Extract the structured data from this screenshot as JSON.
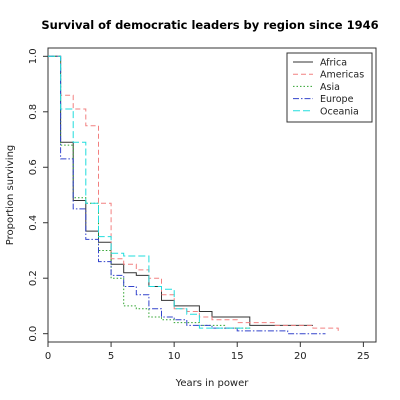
{
  "chart_data": {
    "type": "line",
    "title": "Survival of democratic leaders by region since 1946",
    "xlabel": "Years in power",
    "ylabel": "Proportion surviving",
    "xlim": [
      0,
      26
    ],
    "ylim": [
      -0.03,
      1.03
    ],
    "xticks": [
      0,
      5,
      10,
      15,
      20,
      25
    ],
    "yticks": [
      0.0,
      0.2,
      0.4,
      0.6,
      0.8,
      1.0
    ],
    "xtick_labels": [
      "0",
      "5",
      "10",
      "15",
      "20",
      "25"
    ],
    "ytick_labels": [
      "0.0",
      "0.2",
      "0.4",
      "0.6",
      "0.8",
      "1.0"
    ],
    "legend_position": "top-right",
    "grid": false,
    "series": [
      {
        "name": "Africa",
        "color": "#333333",
        "dash": "solid",
        "x": [
          0,
          1,
          2,
          3,
          4,
          5,
          6,
          7,
          8,
          9,
          10,
          12,
          13,
          16,
          21
        ],
        "y": [
          1.0,
          0.69,
          0.48,
          0.37,
          0.33,
          0.25,
          0.22,
          0.21,
          0.17,
          0.12,
          0.1,
          0.08,
          0.06,
          0.03,
          0.03
        ]
      },
      {
        "name": "Americas",
        "color": "#f28080",
        "dash": "5,3",
        "x": [
          0,
          1,
          2,
          3,
          4,
          5,
          6,
          7,
          8,
          9,
          10,
          11,
          12,
          13,
          15,
          18,
          21,
          23
        ],
        "y": [
          1.0,
          0.86,
          0.81,
          0.75,
          0.47,
          0.27,
          0.25,
          0.23,
          0.2,
          0.14,
          0.09,
          0.08,
          0.06,
          0.05,
          0.04,
          0.03,
          0.02,
          0.01
        ]
      },
      {
        "name": "Asia",
        "color": "#2fa32f",
        "dash": "1.5,2",
        "x": [
          0,
          1,
          2,
          3,
          4,
          5,
          6,
          7,
          8,
          9,
          10,
          12,
          14,
          16
        ],
        "y": [
          1.0,
          0.68,
          0.49,
          0.47,
          0.3,
          0.2,
          0.1,
          0.09,
          0.06,
          0.05,
          0.04,
          0.03,
          0.02,
          0.01
        ]
      },
      {
        "name": "Europe",
        "color": "#3344cc",
        "dash": "6,2,1.5,2",
        "x": [
          0,
          1,
          2,
          3,
          4,
          5,
          6,
          7,
          8,
          9,
          10,
          11,
          13,
          15,
          19,
          22
        ],
        "y": [
          1.0,
          0.63,
          0.45,
          0.34,
          0.26,
          0.21,
          0.17,
          0.14,
          0.09,
          0.06,
          0.05,
          0.03,
          0.02,
          0.01,
          0.0,
          0.0
        ]
      },
      {
        "name": "Oceania",
        "color": "#22dddd",
        "dash": "7,3",
        "x": [
          0,
          1,
          2,
          3,
          4,
          5,
          6,
          8,
          9,
          10,
          11,
          12,
          16
        ],
        "y": [
          1.0,
          0.81,
          0.69,
          0.47,
          0.35,
          0.29,
          0.28,
          0.17,
          0.16,
          0.09,
          0.07,
          0.02,
          0.02
        ]
      }
    ]
  }
}
